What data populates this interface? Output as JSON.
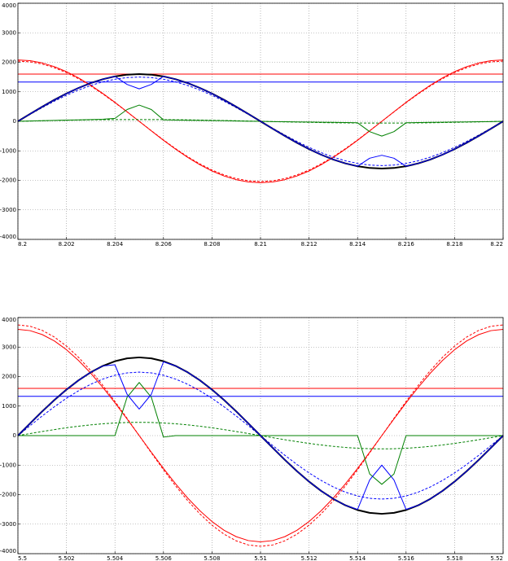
{
  "chart_data": [
    {
      "type": "line",
      "xlim": [
        8.2,
        8.22
      ],
      "ylim": [
        -4000,
        4000
      ],
      "xticks": [
        8.2,
        8.202,
        8.204,
        8.206,
        8.208,
        8.21,
        8.212,
        8.214,
        8.216,
        8.218,
        8.22
      ],
      "yticks": [
        -4000,
        -3000,
        -2000,
        -1000,
        0,
        1000,
        2000,
        3000,
        4000
      ],
      "grid": true,
      "x": [
        8.2,
        8.2005,
        8.201,
        8.2015,
        8.202,
        8.2025,
        8.203,
        8.2035,
        8.204,
        8.2045,
        8.205,
        8.2055,
        8.206,
        8.2065,
        8.207,
        8.2075,
        8.208,
        8.2085,
        8.209,
        8.2095,
        8.21,
        8.2105,
        8.211,
        8.2115,
        8.212,
        8.2125,
        8.213,
        8.2135,
        8.214,
        8.2145,
        8.215,
        8.2155,
        8.216,
        8.2165,
        8.217,
        8.2175,
        8.218,
        8.2185,
        8.219,
        8.2195,
        8.22
      ],
      "series": [
        {
          "color": "#ff0000",
          "linestyle": "solid",
          "values": [
            2080,
            2054,
            1978,
            1853,
            1683,
            1471,
            1223,
            944,
            643,
            324,
            0,
            -324,
            -643,
            -944,
            -1223,
            -1471,
            -1683,
            -1853,
            -1978,
            -2054,
            -2080,
            -2054,
            -1978,
            -1853,
            -1683,
            -1471,
            -1223,
            -944,
            -643,
            -324,
            0,
            324,
            643,
            944,
            1223,
            1471,
            1683,
            1853,
            1978,
            2054,
            2080
          ]
        },
        {
          "color": "#ff0000",
          "linestyle": "dashed",
          "values": [
            2040,
            2015,
            1940,
            1818,
            1650,
            1442,
            1200,
            926,
            630,
            318,
            0,
            -318,
            -630,
            -926,
            -1200,
            -1442,
            -1650,
            -1818,
            -1940,
            -2015,
            -2040,
            -2015,
            -1940,
            -1818,
            -1650,
            -1442,
            -1200,
            -926,
            -630,
            -318,
            0,
            318,
            630,
            926,
            1200,
            1442,
            1650,
            1818,
            1940,
            2015,
            2040
          ]
        },
        {
          "color": "#008000",
          "linestyle": "solid",
          "values": [
            0,
            10,
            20,
            30,
            40,
            50,
            60,
            70,
            100,
            400,
            550,
            400,
            50,
            40,
            35,
            30,
            25,
            20,
            10,
            5,
            0,
            -10,
            -15,
            -20,
            -25,
            -30,
            -35,
            -40,
            -50,
            -350,
            -500,
            -350,
            -50,
            -40,
            -35,
            -30,
            -25,
            -20,
            -15,
            -10,
            0
          ]
        },
        {
          "color": "#008000",
          "linestyle": "dashed",
          "values": [
            0,
            9,
            19,
            27,
            35,
            42,
            49,
            53,
            57,
            59,
            60,
            59,
            57,
            53,
            49,
            42,
            35,
            27,
            19,
            9,
            0,
            -9,
            -19,
            -27,
            -35,
            -42,
            -49,
            -53,
            -57,
            -59,
            -60,
            -59,
            -57,
            -53,
            -49,
            -42,
            -35,
            -27,
            -19,
            -9,
            0
          ]
        },
        {
          "color": "#0000ff",
          "linestyle": "dashed",
          "values": [
            0,
            234,
            464,
            681,
            882,
            1061,
            1214,
            1337,
            1427,
            1482,
            1500,
            1482,
            1427,
            1337,
            1214,
            1061,
            882,
            681,
            464,
            234,
            0,
            -234,
            -464,
            -681,
            -882,
            -1061,
            -1214,
            -1337,
            -1427,
            -1482,
            -1500,
            -1482,
            -1427,
            -1337,
            -1214,
            -1061,
            -882,
            -681,
            -464,
            -234,
            0
          ]
        },
        {
          "color": "#000000",
          "linestyle": "solid",
          "values": [
            0,
            250,
            494,
            726,
            941,
            1131,
            1294,
            1426,
            1522,
            1581,
            1600,
            1581,
            1522,
            1426,
            1294,
            1131,
            941,
            726,
            494,
            250,
            0,
            -250,
            -494,
            -726,
            -941,
            -1131,
            -1294,
            -1426,
            -1522,
            -1581,
            -1600,
            -1581,
            -1522,
            -1426,
            -1294,
            -1131,
            -941,
            -726,
            -494,
            -250,
            0
          ]
        },
        {
          "color": "#0000ff",
          "linestyle": "solid",
          "values": [
            0,
            250,
            494,
            726,
            941,
            1131,
            1294,
            1426,
            1522,
            1250,
            1100,
            1250,
            1522,
            1426,
            1294,
            1131,
            941,
            726,
            494,
            250,
            0,
            -250,
            -494,
            -726,
            -941,
            -1131,
            -1294,
            -1426,
            -1522,
            -1250,
            -1150,
            -1250,
            -1522,
            -1426,
            -1294,
            -1131,
            -941,
            -726,
            -494,
            -250,
            0
          ]
        }
      ],
      "hlines": [
        {
          "color": "#ff0000",
          "value": 1600
        },
        {
          "color": "#0000ff",
          "value": 1330
        }
      ]
    },
    {
      "type": "line",
      "xlim": [
        5.5,
        5.52
      ],
      "ylim": [
        -4000,
        4000
      ],
      "xticks": [
        5.5,
        5.502,
        5.504,
        5.506,
        5.508,
        5.51,
        5.512,
        5.514,
        5.516,
        5.518,
        5.52
      ],
      "yticks": [
        -4000,
        -3000,
        -2000,
        -1000,
        0,
        1000,
        2000,
        3000,
        4000
      ],
      "grid": true,
      "x": [
        5.5,
        5.5005,
        5.501,
        5.5015,
        5.502,
        5.5025,
        5.503,
        5.5035,
        5.504,
        5.5045,
        5.505,
        5.5055,
        5.506,
        5.5065,
        5.507,
        5.5075,
        5.508,
        5.5085,
        5.509,
        5.5095,
        5.51,
        5.5105,
        5.511,
        5.5115,
        5.512,
        5.5125,
        5.513,
        5.5135,
        5.514,
        5.5145,
        5.515,
        5.5155,
        5.516,
        5.5165,
        5.517,
        5.5175,
        5.518,
        5.5185,
        5.519,
        5.5195,
        5.52
      ],
      "series": [
        {
          "color": "#ff0000",
          "linestyle": "solid",
          "values": [
            3600,
            3557,
            3424,
            3208,
            2912,
            2545,
            2117,
            1634,
            1112,
            562,
            0,
            -562,
            -1112,
            -1634,
            -2117,
            -2545,
            -2912,
            -3208,
            -3424,
            -3557,
            -3600,
            -3557,
            -3424,
            -3208,
            -2912,
            -2545,
            -2117,
            -1634,
            -1112,
            -562,
            0,
            562,
            1112,
            1634,
            2117,
            2545,
            2912,
            3208,
            3424,
            3557,
            3600
          ]
        },
        {
          "color": "#ff0000",
          "linestyle": "dashed",
          "values": [
            3750,
            3705,
            3566,
            3341,
            3034,
            2651,
            2205,
            1703,
            1159,
            585,
            0,
            -585,
            -1159,
            -1703,
            -2205,
            -2651,
            -3034,
            -3341,
            -3566,
            -3705,
            -3750,
            -3705,
            -3566,
            -3341,
            -3034,
            -2651,
            -2205,
            -1703,
            -1159,
            -585,
            0,
            585,
            1159,
            1703,
            2205,
            2651,
            3034,
            3341,
            3566,
            3705,
            3750
          ]
        },
        {
          "color": "#008000",
          "linestyle": "solid",
          "values": [
            0,
            0,
            0,
            0,
            0,
            0,
            0,
            0,
            0,
            1300,
            1800,
            1300,
            -50,
            0,
            0,
            0,
            0,
            0,
            0,
            0,
            0,
            0,
            0,
            0,
            0,
            0,
            0,
            0,
            0,
            -1300,
            -1650,
            -1300,
            0,
            0,
            0,
            0,
            0,
            0,
            0,
            0,
            0
          ]
        },
        {
          "color": "#008000",
          "linestyle": "dashed",
          "values": [
            0,
            70,
            139,
            204,
            265,
            318,
            364,
            401,
            428,
            445,
            450,
            445,
            428,
            401,
            364,
            318,
            265,
            204,
            139,
            70,
            0,
            -70,
            -139,
            -204,
            -265,
            -318,
            -364,
            -401,
            -428,
            -445,
            -450,
            -445,
            -428,
            -401,
            -364,
            -318,
            -265,
            -204,
            -139,
            -70,
            0
          ]
        },
        {
          "color": "#0000ff",
          "linestyle": "dashed",
          "values": [
            0,
            335,
            664,
            976,
            1264,
            1520,
            1739,
            1916,
            2045,
            2124,
            2150,
            2124,
            2045,
            1916,
            1739,
            1520,
            1264,
            976,
            664,
            335,
            0,
            -335,
            -664,
            -976,
            -1264,
            -1520,
            -1739,
            -1916,
            -2045,
            -2124,
            -2150,
            -2124,
            -2045,
            -1916,
            -1739,
            -1520,
            -1264,
            -976,
            -664,
            -335,
            0
          ]
        },
        {
          "color": "#000000",
          "linestyle": "solid",
          "values": [
            0,
            413,
            819,
            1203,
            1558,
            1874,
            2144,
            2361,
            2520,
            2618,
            2650,
            2618,
            2520,
            2361,
            2144,
            1874,
            1558,
            1203,
            819,
            413,
            0,
            -413,
            -819,
            -1203,
            -1558,
            -1874,
            -2144,
            -2361,
            -2520,
            -2618,
            -2650,
            -2618,
            -2520,
            -2361,
            -2144,
            -1874,
            -1558,
            -1203,
            -819,
            -413,
            0
          ]
        },
        {
          "color": "#0000ff",
          "linestyle": "solid",
          "values": [
            0,
            413,
            819,
            1203,
            1558,
            1874,
            2144,
            2361,
            2400,
            1400,
            900,
            1400,
            2500,
            2361,
            2144,
            1874,
            1558,
            1203,
            819,
            413,
            0,
            -413,
            -819,
            -1203,
            -1558,
            -1874,
            -2144,
            -2361,
            -2500,
            -1500,
            -1000,
            -1500,
            -2500,
            -2361,
            -2144,
            -1874,
            -1558,
            -1203,
            -819,
            -413,
            0
          ]
        }
      ],
      "hlines": [
        {
          "color": "#ff0000",
          "value": 1600
        },
        {
          "color": "#0000ff",
          "value": 1330
        }
      ]
    }
  ]
}
